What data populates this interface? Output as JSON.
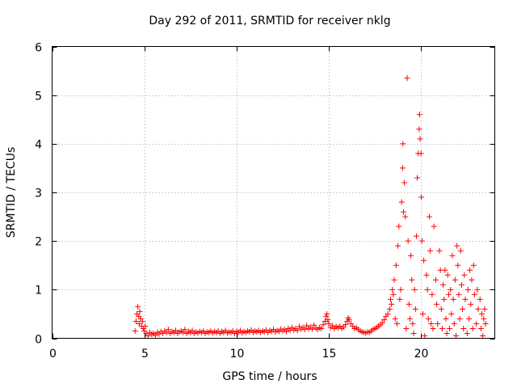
{
  "chart_data": {
    "type": "scatter",
    "title": "Day 292 of 2011, SRMTID for receiver nklg",
    "xlabel": "GPS time / hours",
    "ylabel": "SRMTID / TECUs",
    "xlim": [
      0,
      24
    ],
    "ylim": [
      0,
      6
    ],
    "xticks": [
      0,
      5,
      10,
      15,
      20
    ],
    "yticks": [
      0,
      1,
      2,
      3,
      4,
      5,
      6
    ],
    "grid": true,
    "marker": "+",
    "color": "#ff0000",
    "series": [
      {
        "name": "SRMTID",
        "points": [
          [
            4.5,
            0.15
          ],
          [
            4.55,
            0.35
          ],
          [
            4.6,
            0.5
          ],
          [
            4.65,
            0.65
          ],
          [
            4.7,
            0.45
          ],
          [
            4.72,
            0.3
          ],
          [
            4.75,
            0.55
          ],
          [
            4.8,
            0.4
          ],
          [
            4.85,
            0.25
          ],
          [
            4.9,
            0.35
          ],
          [
            4.95,
            0.2
          ],
          [
            5.0,
            0.15
          ],
          [
            5.05,
            0.25
          ],
          [
            5.1,
            0.1
          ],
          [
            5.2,
            0.05
          ],
          [
            5.3,
            0.12
          ],
          [
            5.4,
            0.08
          ],
          [
            5.5,
            0.1
          ],
          [
            5.6,
            0.06
          ],
          [
            5.7,
            0.12
          ],
          [
            5.8,
            0.09
          ],
          [
            5.9,
            0.14
          ],
          [
            6.0,
            0.1
          ],
          [
            6.1,
            0.15
          ],
          [
            6.2,
            0.12
          ],
          [
            6.3,
            0.18
          ],
          [
            6.4,
            0.1
          ],
          [
            6.5,
            0.14
          ],
          [
            6.6,
            0.12
          ],
          [
            6.7,
            0.16
          ],
          [
            6.8,
            0.1
          ],
          [
            6.9,
            0.13
          ],
          [
            7.0,
            0.15
          ],
          [
            7.1,
            0.12
          ],
          [
            7.2,
            0.18
          ],
          [
            7.3,
            0.1
          ],
          [
            7.4,
            0.14
          ],
          [
            7.5,
            0.12
          ],
          [
            7.6,
            0.16
          ],
          [
            7.7,
            0.1
          ],
          [
            7.8,
            0.13
          ],
          [
            7.9,
            0.11
          ],
          [
            8.0,
            0.14
          ],
          [
            8.1,
            0.12
          ],
          [
            8.2,
            0.15
          ],
          [
            8.3,
            0.1
          ],
          [
            8.4,
            0.13
          ],
          [
            8.5,
            0.12
          ],
          [
            8.6,
            0.15
          ],
          [
            8.7,
            0.11
          ],
          [
            8.8,
            0.14
          ],
          [
            8.9,
            0.12
          ],
          [
            9.0,
            0.15
          ],
          [
            9.1,
            0.1
          ],
          [
            9.2,
            0.14
          ],
          [
            9.3,
            0.12
          ],
          [
            9.4,
            0.16
          ],
          [
            9.5,
            0.11
          ],
          [
            9.6,
            0.13
          ],
          [
            9.7,
            0.12
          ],
          [
            9.8,
            0.15
          ],
          [
            9.9,
            0.1
          ],
          [
            10.0,
            0.14
          ],
          [
            10.1,
            0.12
          ],
          [
            10.2,
            0.16
          ],
          [
            10.3,
            0.11
          ],
          [
            10.4,
            0.14
          ],
          [
            10.5,
            0.12
          ],
          [
            10.6,
            0.15
          ],
          [
            10.7,
            0.13
          ],
          [
            10.8,
            0.17
          ],
          [
            10.9,
            0.12
          ],
          [
            11.0,
            0.15
          ],
          [
            11.1,
            0.13
          ],
          [
            11.2,
            0.16
          ],
          [
            11.3,
            0.12
          ],
          [
            11.4,
            0.15
          ],
          [
            11.5,
            0.13
          ],
          [
            11.6,
            0.17
          ],
          [
            11.7,
            0.12
          ],
          [
            11.8,
            0.16
          ],
          [
            11.9,
            0.14
          ],
          [
            12.0,
            0.18
          ],
          [
            12.1,
            0.13
          ],
          [
            12.2,
            0.16
          ],
          [
            12.3,
            0.14
          ],
          [
            12.4,
            0.19
          ],
          [
            12.5,
            0.15
          ],
          [
            12.6,
            0.18
          ],
          [
            12.7,
            0.14
          ],
          [
            12.8,
            0.2
          ],
          [
            12.9,
            0.16
          ],
          [
            13.0,
            0.22
          ],
          [
            13.1,
            0.17
          ],
          [
            13.2,
            0.2
          ],
          [
            13.3,
            0.16
          ],
          [
            13.4,
            0.24
          ],
          [
            13.5,
            0.19
          ],
          [
            13.6,
            0.22
          ],
          [
            13.7,
            0.18
          ],
          [
            13.8,
            0.26
          ],
          [
            13.9,
            0.2
          ],
          [
            14.0,
            0.23
          ],
          [
            14.1,
            0.19
          ],
          [
            14.2,
            0.27
          ],
          [
            14.3,
            0.21
          ],
          [
            14.4,
            0.18
          ],
          [
            14.5,
            0.22
          ],
          [
            14.6,
            0.2
          ],
          [
            14.7,
            0.28
          ],
          [
            14.8,
            0.35
          ],
          [
            14.85,
            0.45
          ],
          [
            14.9,
            0.5
          ],
          [
            14.95,
            0.38
          ],
          [
            15.0,
            0.3
          ],
          [
            15.1,
            0.22
          ],
          [
            15.2,
            0.26
          ],
          [
            15.3,
            0.2
          ],
          [
            15.4,
            0.24
          ],
          [
            15.5,
            0.22
          ],
          [
            15.6,
            0.25
          ],
          [
            15.7,
            0.2
          ],
          [
            15.8,
            0.23
          ],
          [
            15.9,
            0.28
          ],
          [
            16.0,
            0.35
          ],
          [
            16.05,
            0.42
          ],
          [
            16.1,
            0.38
          ],
          [
            16.2,
            0.3
          ],
          [
            16.3,
            0.25
          ],
          [
            16.4,
            0.2
          ],
          [
            16.5,
            0.22
          ],
          [
            16.6,
            0.18
          ],
          [
            16.7,
            0.15
          ],
          [
            16.8,
            0.13
          ],
          [
            16.9,
            0.12
          ],
          [
            17.0,
            0.11
          ],
          [
            17.1,
            0.13
          ],
          [
            17.2,
            0.12
          ],
          [
            17.3,
            0.15
          ],
          [
            17.4,
            0.18
          ],
          [
            17.5,
            0.2
          ],
          [
            17.6,
            0.22
          ],
          [
            17.7,
            0.25
          ],
          [
            17.8,
            0.28
          ],
          [
            17.9,
            0.32
          ],
          [
            18.0,
            0.38
          ],
          [
            18.1,
            0.45
          ],
          [
            18.2,
            0.5
          ],
          [
            18.3,
            0.6
          ],
          [
            18.35,
            0.8
          ],
          [
            18.4,
            0.7
          ],
          [
            18.45,
            1.0
          ],
          [
            18.5,
            0.9
          ],
          [
            18.55,
            1.2
          ],
          [
            18.6,
            0.4
          ],
          [
            18.65,
            1.5
          ],
          [
            18.7,
            0.3
          ],
          [
            18.75,
            1.9
          ],
          [
            18.8,
            2.3
          ],
          [
            18.85,
            0.8
          ],
          [
            18.9,
            1.0
          ],
          [
            18.95,
            2.8
          ],
          [
            19.0,
            3.5
          ],
          [
            19.02,
            4.0
          ],
          [
            19.05,
            2.6
          ],
          [
            19.1,
            3.2
          ],
          [
            19.15,
            2.5
          ],
          [
            19.2,
            0.2
          ],
          [
            19.25,
            5.35
          ],
          [
            19.3,
            2.0
          ],
          [
            19.35,
            0.7
          ],
          [
            19.4,
            0.4
          ],
          [
            19.45,
            1.7
          ],
          [
            19.5,
            1.2
          ],
          [
            19.55,
            0.3
          ],
          [
            19.6,
            0.1
          ],
          [
            19.65,
            1.0
          ],
          [
            19.7,
            0.6
          ],
          [
            19.75,
            2.1
          ],
          [
            19.8,
            3.3
          ],
          [
            19.85,
            3.8
          ],
          [
            19.9,
            4.3
          ],
          [
            19.92,
            4.6
          ],
          [
            19.95,
            4.1
          ],
          [
            20.0,
            3.8
          ],
          [
            20.02,
            2.9
          ],
          [
            20.05,
            2.0
          ],
          [
            20.1,
            0.5
          ],
          [
            20.15,
            1.6
          ],
          [
            20.2,
            0.05
          ],
          [
            20.3,
            1.3
          ],
          [
            20.35,
            1.0
          ],
          [
            20.4,
            0.4
          ],
          [
            20.45,
            2.5
          ],
          [
            20.5,
            1.8
          ],
          [
            20.55,
            0.3
          ],
          [
            20.6,
            0.9
          ],
          [
            20.65,
            0.2
          ],
          [
            20.7,
            2.3
          ],
          [
            20.8,
            1.2
          ],
          [
            20.85,
            0.7
          ],
          [
            20.9,
            0.3
          ],
          [
            21.0,
            1.8
          ],
          [
            21.05,
            1.4
          ],
          [
            21.1,
            0.6
          ],
          [
            21.15,
            0.2
          ],
          [
            21.2,
            1.1
          ],
          [
            21.25,
            0.8
          ],
          [
            21.3,
            1.4
          ],
          [
            21.35,
            0.4
          ],
          [
            21.4,
            0.1
          ],
          [
            21.45,
            1.3
          ],
          [
            21.5,
            0.9
          ],
          [
            21.55,
            0.2
          ],
          [
            21.6,
            1.0
          ],
          [
            21.65,
            0.5
          ],
          [
            21.7,
            1.7
          ],
          [
            21.75,
            0.8
          ],
          [
            21.8,
            0.3
          ],
          [
            21.85,
            1.2
          ],
          [
            21.9,
            0.05
          ],
          [
            21.95,
            1.9
          ],
          [
            22.0,
            1.5
          ],
          [
            22.05,
            0.9
          ],
          [
            22.1,
            0.4
          ],
          [
            22.15,
            1.8
          ],
          [
            22.2,
            1.1
          ],
          [
            22.25,
            0.6
          ],
          [
            22.3,
            0.2
          ],
          [
            22.35,
            1.3
          ],
          [
            22.4,
            0.8
          ],
          [
            22.5,
            0.1
          ],
          [
            22.55,
            1.0
          ],
          [
            22.6,
            0.4
          ],
          [
            22.65,
            1.4
          ],
          [
            22.7,
            0.7
          ],
          [
            22.75,
            1.2
          ],
          [
            22.8,
            0.2
          ],
          [
            22.85,
            1.5
          ],
          [
            22.9,
            0.9
          ],
          [
            23.0,
            0.3
          ],
          [
            23.05,
            1.0
          ],
          [
            23.1,
            0.6
          ],
          [
            23.2,
            0.8
          ],
          [
            23.25,
            0.2
          ],
          [
            23.3,
            0.5
          ],
          [
            23.35,
            0.05
          ],
          [
            23.4,
            0.4
          ],
          [
            23.45,
            0.6
          ],
          [
            23.5,
            0.3
          ]
        ]
      }
    ]
  }
}
